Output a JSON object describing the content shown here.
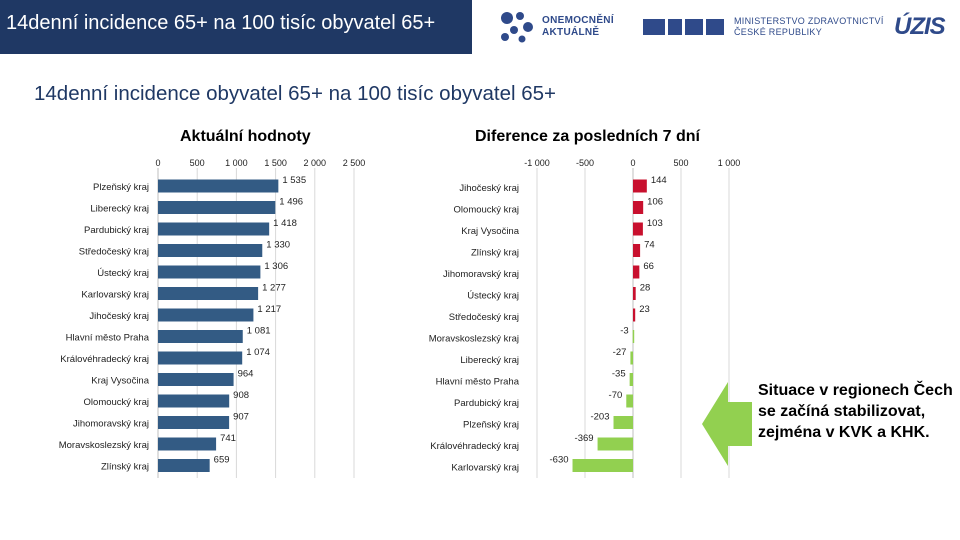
{
  "header": {
    "title": "14denní incidence 65+ na 100 tisíc obyvatel 65+",
    "logo_oa_line1": "ONEMOCNĚNÍ",
    "logo_oa_line2": "AKTUÁLNĚ",
    "logo_mz_line1": "MINISTERSTVO ZDRAVOTNICTVÍ",
    "logo_mz_line2": "ČESKÉ REPUBLIKY",
    "logo_uzis": "ÚZIS"
  },
  "page": {
    "title": "14denní incidence obyvatel 65+ na 100 tisíc obyvatel 65+"
  },
  "colors": {
    "header_bg": "#1f3864",
    "bar_blue": "#335b84",
    "bar_red": "#c8102e",
    "bar_green": "#92d050",
    "arrow_green": "#92d050"
  },
  "chart_data": [
    {
      "type": "bar",
      "orientation": "horizontal",
      "title": "Aktuální hodnoty",
      "xlim": [
        0,
        2500
      ],
      "ticks": [
        0,
        500,
        1000,
        1500,
        2000,
        2500
      ],
      "tick_labels": [
        "0",
        "500",
        "1 000",
        "1 500",
        "2 000",
        "2 500"
      ],
      "categories": [
        "Plzeňský kraj",
        "Liberecký kraj",
        "Pardubický kraj",
        "Středočeský kraj",
        "Ústecký kraj",
        "Karlovarský kraj",
        "Jihočeský kraj",
        "Hlavní město Praha",
        "Královéhradecký kraj",
        "Kraj Vysočina",
        "Olomoucký kraj",
        "Jihomoravský kraj",
        "Moravskoslezský kraj",
        "Zlínský kraj"
      ],
      "values": [
        1535,
        1496,
        1418,
        1330,
        1306,
        1277,
        1217,
        1081,
        1074,
        964,
        908,
        907,
        741,
        659
      ],
      "value_labels": [
        "1 535",
        "1 496",
        "1 418",
        "1 330",
        "1 306",
        "1 277",
        "1 217",
        "1 081",
        "1 074",
        "964",
        "908",
        "907",
        "741",
        "659"
      ]
    },
    {
      "type": "bar",
      "orientation": "horizontal",
      "title": "Diference za posledních 7 dní",
      "xlim": [
        -1000,
        1000
      ],
      "ticks": [
        -1000,
        -500,
        0,
        500,
        1000
      ],
      "tick_labels": [
        "-1 000",
        "-500",
        "0",
        "500",
        "1 000"
      ],
      "categories": [
        "Jihočeský kraj",
        "Olomoucký kraj",
        "Kraj Vysočina",
        "Zlínský kraj",
        "Jihomoravský kraj",
        "Ústecký kraj",
        "Středočeský kraj",
        "Moravskoslezský kraj",
        "Liberecký kraj",
        "Hlavní město Praha",
        "Pardubický kraj",
        "Plzeňský kraj",
        "Královéhradecký kraj",
        "Karlovarský kraj"
      ],
      "values": [
        144,
        106,
        103,
        74,
        66,
        28,
        23,
        -3,
        -27,
        -35,
        -70,
        -203,
        -369,
        -630
      ],
      "value_labels": [
        "144",
        "106",
        "103",
        "74",
        "66",
        "28",
        "23",
        "-3",
        "-27",
        "-35",
        "-70",
        "-203",
        "-369",
        "-630"
      ]
    }
  ],
  "note": {
    "text": "Situace v regionech Čech se začíná stabilizovat, zejména v KVK a KHK."
  }
}
